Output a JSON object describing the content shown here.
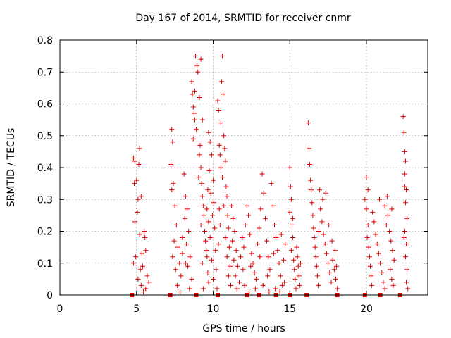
{
  "chart_data": {
    "type": "scatter",
    "title": "Day 167 of 2014, SRMTID for receiver cnmr",
    "xlabel": "GPS time / hours",
    "ylabel": "SRMTID / TECUs",
    "xlim": [
      0,
      24
    ],
    "ylim": [
      0,
      0.8
    ],
    "xticks": [
      0,
      5,
      10,
      15,
      20
    ],
    "yticks": [
      0,
      0.1,
      0.2,
      0.3,
      0.4,
      0.5,
      0.6,
      0.7,
      0.8
    ],
    "xtick_labels": [
      "0",
      "5",
      "10",
      "15",
      "20"
    ],
    "ytick_labels": [
      "0",
      "0.1",
      "0.2",
      "0.3",
      "0.4",
      "0.5",
      "0.6",
      "0.7",
      "0.8"
    ],
    "grid": true,
    "marker": "+",
    "color": "#e00000",
    "zero_markers_x": [
      4.7,
      7.2,
      8.9,
      10.3,
      12.2,
      13.0,
      14.1,
      15.0,
      16.1,
      18.1,
      19.9,
      20.9,
      22.2
    ],
    "series": [
      {
        "name": "SRMTID",
        "points": [
          [
            4.8,
            0.43
          ],
          [
            4.9,
            0.42
          ],
          [
            5.0,
            0.36
          ],
          [
            4.85,
            0.35
          ],
          [
            5.1,
            0.3
          ],
          [
            5.2,
            0.46
          ],
          [
            5.15,
            0.41
          ],
          [
            5.3,
            0.31
          ],
          [
            5.05,
            0.26
          ],
          [
            4.9,
            0.23
          ],
          [
            5.2,
            0.19
          ],
          [
            5.35,
            0.13
          ],
          [
            5.4,
            0.09
          ],
          [
            5.5,
            0.2
          ],
          [
            5.6,
            0.14
          ],
          [
            5.7,
            0.06
          ],
          [
            5.8,
            0.04
          ],
          [
            5.3,
            0.03
          ],
          [
            5.45,
            0.01
          ],
          [
            5.6,
            0.02
          ],
          [
            4.95,
            0.12
          ],
          [
            4.8,
            0.1
          ],
          [
            5.1,
            0.05
          ],
          [
            5.25,
            0.08
          ],
          [
            5.55,
            0.18
          ],
          [
            7.3,
            0.52
          ],
          [
            7.35,
            0.48
          ],
          [
            7.25,
            0.41
          ],
          [
            7.4,
            0.35
          ],
          [
            7.3,
            0.33
          ],
          [
            7.5,
            0.28
          ],
          [
            7.6,
            0.22
          ],
          [
            7.45,
            0.17
          ],
          [
            7.35,
            0.12
          ],
          [
            7.55,
            0.08
          ],
          [
            7.7,
            0.15
          ],
          [
            7.8,
            0.1
          ],
          [
            7.9,
            0.06
          ],
          [
            8.0,
            0.13
          ],
          [
            7.65,
            0.03
          ],
          [
            7.85,
            0.01
          ],
          [
            8.1,
            0.38
          ],
          [
            8.2,
            0.31
          ],
          [
            8.3,
            0.27
          ],
          [
            8.15,
            0.24
          ],
          [
            8.4,
            0.2
          ],
          [
            8.25,
            0.16
          ],
          [
            8.5,
            0.12
          ],
          [
            8.35,
            0.09
          ],
          [
            8.6,
            0.05
          ],
          [
            8.45,
            0.02
          ],
          [
            8.2,
            0.1
          ],
          [
            8.0,
            0.18
          ],
          [
            8.6,
            0.67
          ],
          [
            8.65,
            0.63
          ],
          [
            8.7,
            0.59
          ],
          [
            8.75,
            0.57
          ],
          [
            8.8,
            0.55
          ],
          [
            8.9,
            0.52
          ],
          [
            8.7,
            0.49
          ],
          [
            8.85,
            0.75
          ],
          [
            8.95,
            0.72
          ],
          [
            9.0,
            0.7
          ],
          [
            8.8,
            0.64
          ],
          [
            9.1,
            0.44
          ],
          [
            9.2,
            0.4
          ],
          [
            9.25,
            0.35
          ],
          [
            9.3,
            0.31
          ],
          [
            9.35,
            0.28
          ],
          [
            9.4,
            0.25
          ],
          [
            9.2,
            0.22
          ],
          [
            9.45,
            0.2
          ],
          [
            9.5,
            0.17
          ],
          [
            9.55,
            0.14
          ],
          [
            9.6,
            0.12
          ],
          [
            9.3,
            0.1
          ],
          [
            9.65,
            0.07
          ],
          [
            9.7,
            0.04
          ],
          [
            9.35,
            0.02
          ],
          [
            9.1,
            0.62
          ],
          [
            9.2,
            0.74
          ],
          [
            9.3,
            0.55
          ],
          [
            9.15,
            0.47
          ],
          [
            9.05,
            0.37
          ],
          [
            9.7,
            0.51
          ],
          [
            9.8,
            0.48
          ],
          [
            9.9,
            0.44
          ],
          [
            9.75,
            0.39
          ],
          [
            10.0,
            0.36
          ],
          [
            9.85,
            0.32
          ],
          [
            10.05,
            0.29
          ],
          [
            9.95,
            0.25
          ],
          [
            10.1,
            0.21
          ],
          [
            9.8,
            0.18
          ],
          [
            10.15,
            0.14
          ],
          [
            9.9,
            0.11
          ],
          [
            10.2,
            0.08
          ],
          [
            10.0,
            0.05
          ],
          [
            10.25,
            0.02
          ],
          [
            9.6,
            0.27
          ],
          [
            9.65,
            0.33
          ],
          [
            9.7,
            0.23
          ],
          [
            10.3,
            0.61
          ],
          [
            10.35,
            0.58
          ],
          [
            10.4,
            0.47
          ],
          [
            10.45,
            0.44
          ],
          [
            10.5,
            0.4
          ],
          [
            10.6,
            0.75
          ],
          [
            10.55,
            0.67
          ],
          [
            10.65,
            0.63
          ],
          [
            10.5,
            0.54
          ],
          [
            10.7,
            0.5
          ],
          [
            10.75,
            0.46
          ],
          [
            10.8,
            0.42
          ],
          [
            10.6,
            0.37
          ],
          [
            10.85,
            0.34
          ],
          [
            10.9,
            0.31
          ],
          [
            10.7,
            0.28
          ],
          [
            10.95,
            0.25
          ],
          [
            11.0,
            0.21
          ],
          [
            10.8,
            0.18
          ],
          [
            11.05,
            0.15
          ],
          [
            10.9,
            0.12
          ],
          [
            11.1,
            0.09
          ],
          [
            11.0,
            0.06
          ],
          [
            11.15,
            0.03
          ],
          [
            10.4,
            0.27
          ],
          [
            10.45,
            0.22
          ],
          [
            10.35,
            0.16
          ],
          [
            11.2,
            0.28
          ],
          [
            11.3,
            0.24
          ],
          [
            11.4,
            0.2
          ],
          [
            11.25,
            0.17
          ],
          [
            11.5,
            0.14
          ],
          [
            11.35,
            0.11
          ],
          [
            11.6,
            0.09
          ],
          [
            11.45,
            0.06
          ],
          [
            11.7,
            0.04
          ],
          [
            11.55,
            0.02
          ],
          [
            11.8,
            0.12
          ],
          [
            11.9,
            0.18
          ],
          [
            12.0,
            0.15
          ],
          [
            12.1,
            0.22
          ],
          [
            12.2,
            0.28
          ],
          [
            12.3,
            0.25
          ],
          [
            12.4,
            0.19
          ],
          [
            12.5,
            0.13
          ],
          [
            12.6,
            0.1
          ],
          [
            12.7,
            0.07
          ],
          [
            12.8,
            0.05
          ],
          [
            12.9,
            0.16
          ],
          [
            13.0,
            0.21
          ],
          [
            13.1,
            0.27
          ],
          [
            13.2,
            0.38
          ],
          [
            13.3,
            0.32
          ],
          [
            13.4,
            0.24
          ],
          [
            13.5,
            0.17
          ],
          [
            13.6,
            0.12
          ],
          [
            13.7,
            0.08
          ],
          [
            13.8,
            0.35
          ],
          [
            13.9,
            0.28
          ],
          [
            14.0,
            0.22
          ],
          [
            14.1,
            0.18
          ],
          [
            14.2,
            0.14
          ],
          [
            14.3,
            0.1
          ],
          [
            14.4,
            0.06
          ],
          [
            14.5,
            0.03
          ],
          [
            14.6,
            0.11
          ],
          [
            14.7,
            0.16
          ],
          [
            12.05,
            0.03
          ],
          [
            12.35,
            0.01
          ],
          [
            12.75,
            0.02
          ],
          [
            13.25,
            0.03
          ],
          [
            13.65,
            0.01
          ],
          [
            14.05,
            0.02
          ],
          [
            14.35,
            0.01
          ],
          [
            14.65,
            0.04
          ],
          [
            11.95,
            0.08
          ],
          [
            12.45,
            0.09
          ],
          [
            13.05,
            0.12
          ],
          [
            13.55,
            0.06
          ],
          [
            13.95,
            0.13
          ],
          [
            14.45,
            0.19
          ],
          [
            15.0,
            0.4
          ],
          [
            15.05,
            0.34
          ],
          [
            15.1,
            0.3
          ],
          [
            15.0,
            0.26
          ],
          [
            15.15,
            0.22
          ],
          [
            15.2,
            0.18
          ],
          [
            15.1,
            0.14
          ],
          [
            15.25,
            0.11
          ],
          [
            15.3,
            0.08
          ],
          [
            15.35,
            0.05
          ],
          [
            15.4,
            0.02
          ],
          [
            15.45,
            0.15
          ],
          [
            15.5,
            0.12
          ],
          [
            15.55,
            0.09
          ],
          [
            15.6,
            0.06
          ],
          [
            15.65,
            0.03
          ],
          [
            15.7,
            0.1
          ],
          [
            15.2,
            0.24
          ],
          [
            16.2,
            0.54
          ],
          [
            16.25,
            0.46
          ],
          [
            16.3,
            0.41
          ],
          [
            16.35,
            0.36
          ],
          [
            16.4,
            0.33
          ],
          [
            16.45,
            0.29
          ],
          [
            16.5,
            0.25
          ],
          [
            16.55,
            0.21
          ],
          [
            16.6,
            0.18
          ],
          [
            16.65,
            0.15
          ],
          [
            16.7,
            0.12
          ],
          [
            16.75,
            0.09
          ],
          [
            16.8,
            0.06
          ],
          [
            16.85,
            0.03
          ],
          [
            16.9,
            0.2
          ],
          [
            17.0,
            0.27
          ],
          [
            17.1,
            0.23
          ],
          [
            17.2,
            0.19
          ],
          [
            17.3,
            0.16
          ],
          [
            17.4,
            0.13
          ],
          [
            17.5,
            0.1
          ],
          [
            17.6,
            0.07
          ],
          [
            17.7,
            0.04
          ],
          [
            17.8,
            0.11
          ],
          [
            17.9,
            0.08
          ],
          [
            18.0,
            0.05
          ],
          [
            18.1,
            0.02
          ],
          [
            17.35,
            0.32
          ],
          [
            17.15,
            0.3
          ],
          [
            16.95,
            0.33
          ],
          [
            17.55,
            0.22
          ],
          [
            17.75,
            0.17
          ],
          [
            17.95,
            0.14
          ],
          [
            18.05,
            0.09
          ],
          [
            19.9,
            0.3
          ],
          [
            20.0,
            0.27
          ],
          [
            20.1,
            0.22
          ],
          [
            20.05,
            0.18
          ],
          [
            20.15,
            0.15
          ],
          [
            20.2,
            0.12
          ],
          [
            20.25,
            0.09
          ],
          [
            20.3,
            0.06
          ],
          [
            20.35,
            0.03
          ],
          [
            20.0,
            0.37
          ],
          [
            20.1,
            0.33
          ],
          [
            20.4,
            0.26
          ],
          [
            20.5,
            0.23
          ],
          [
            20.6,
            0.19
          ],
          [
            20.7,
            0.16
          ],
          [
            20.8,
            0.13
          ],
          [
            20.9,
            0.1
          ],
          [
            21.0,
            0.07
          ],
          [
            21.1,
            0.04
          ],
          [
            21.2,
            0.02
          ],
          [
            21.3,
            0.22
          ],
          [
            21.4,
            0.25
          ],
          [
            21.5,
            0.2
          ],
          [
            21.6,
            0.17
          ],
          [
            21.7,
            0.14
          ],
          [
            21.8,
            0.11
          ],
          [
            21.55,
            0.08
          ],
          [
            21.65,
            0.05
          ],
          [
            21.75,
            0.03
          ],
          [
            21.2,
            0.28
          ],
          [
            20.85,
            0.3
          ],
          [
            21.35,
            0.31
          ],
          [
            21.65,
            0.27
          ],
          [
            22.4,
            0.56
          ],
          [
            22.45,
            0.51
          ],
          [
            22.5,
            0.45
          ],
          [
            22.55,
            0.42
          ],
          [
            22.5,
            0.38
          ],
          [
            22.6,
            0.33
          ],
          [
            22.55,
            0.29
          ],
          [
            22.65,
            0.24
          ],
          [
            22.5,
            0.2
          ],
          [
            22.6,
            0.16
          ],
          [
            22.55,
            0.12
          ],
          [
            22.65,
            0.08
          ],
          [
            22.6,
            0.04
          ],
          [
            22.7,
            0.02
          ],
          [
            22.45,
            0.18
          ],
          [
            22.5,
            0.34
          ]
        ]
      }
    ]
  }
}
